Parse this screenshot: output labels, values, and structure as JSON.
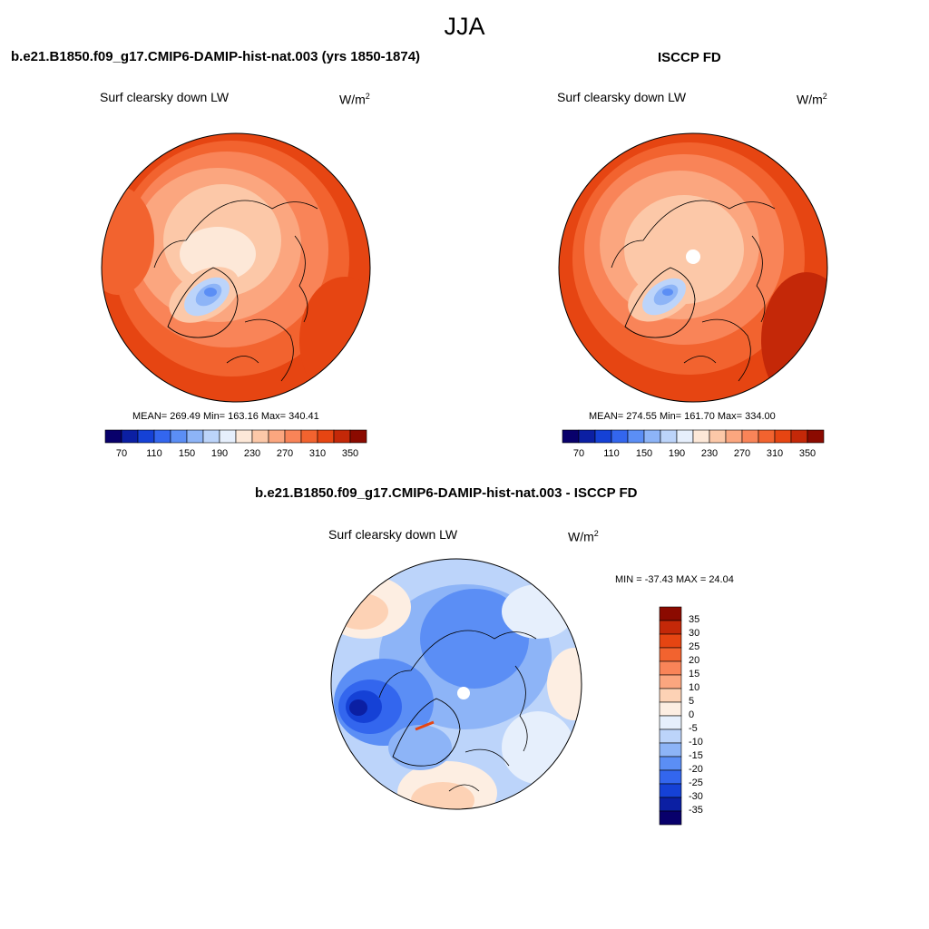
{
  "season": "JJA",
  "panels": {
    "model": {
      "title": "b.e21.B1850.f09_g17.CMIP6-DAMIP-hist-nat.003 (yrs 1850-1874)",
      "variable": "Surf clearsky down LW",
      "units": "W/m",
      "units_exp": "2",
      "stats": "MEAN= 269.49  Min= 163.16  Max= 340.41"
    },
    "obs": {
      "title": "ISCCP FD",
      "variable": "Surf clearsky down LW",
      "units": "W/m",
      "units_exp": "2",
      "stats": "MEAN= 274.55  Min= 161.70  Max= 334.00"
    },
    "diff": {
      "title": "b.e21.B1850.f09_g17.CMIP6-DAMIP-hist-nat.003 - ISCCP FD",
      "variable": "Surf clearsky down LW",
      "units": "W/m",
      "units_exp": "2",
      "stats": "MIN = -37.43 MAX =  24.04"
    }
  },
  "colorbar_abs": {
    "colors": [
      "#08006b",
      "#0b1fa3",
      "#1541d6",
      "#3366ee",
      "#5b8ef5",
      "#8db4f7",
      "#bcd4fa",
      "#e6effc",
      "#fde8d8",
      "#fcc8a8",
      "#fba67f",
      "#f98458",
      "#f2632f",
      "#e64512",
      "#c42808",
      "#8b0a00"
    ],
    "labels": [
      "70",
      "110",
      "150",
      "190",
      "230",
      "270",
      "310",
      "350"
    ]
  },
  "colorbar_diff": {
    "colors": [
      "#8b0a00",
      "#c42808",
      "#e64512",
      "#f2632f",
      "#f98458",
      "#fba67f",
      "#fdd2b5",
      "#fdeee2",
      "#e6effc",
      "#bcd4fa",
      "#8db4f7",
      "#5b8ef5",
      "#3366ee",
      "#1541d6",
      "#0b1fa3",
      "#08006b"
    ],
    "labels": [
      "35",
      "30",
      "25",
      "20",
      "15",
      "10",
      "5",
      "0",
      "-5",
      "-10",
      "-15",
      "-20",
      "-25",
      "-30",
      "-35"
    ]
  }
}
